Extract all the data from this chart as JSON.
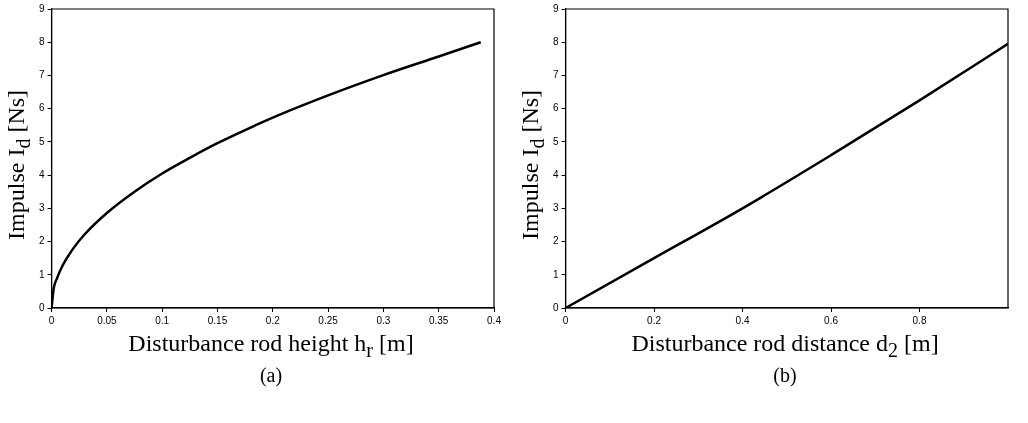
{
  "chart_data": [
    {
      "type": "line",
      "xlabel": "Disturbance rod height h$_{r}$ [m]",
      "ylabel": "Impulse I$_{d}$ [Ns]",
      "annotations": [
        "(a)"
      ],
      "x": [
        0,
        0.002,
        0.005,
        0.01,
        0.02,
        0.03,
        0.05,
        0.075,
        0.1,
        0.125,
        0.15,
        0.2,
        0.25,
        0.3,
        0.35,
        0.388
      ],
      "series": [
        {
          "color": "#000000",
          "values": [
            0,
            0.6,
            0.9,
            1.28,
            1.81,
            2.22,
            2.86,
            3.5,
            4.05,
            4.52,
            4.96,
            5.73,
            6.4,
            7.01,
            7.57,
            8.0
          ]
        }
      ],
      "xlim": [
        0,
        0.4
      ],
      "xticks": [
        0,
        0.05,
        0.1,
        0.15,
        0.2,
        0.25,
        0.3,
        0.35,
        0.4
      ],
      "ylim": [
        0,
        9
      ],
      "yticks": [
        0,
        1,
        2,
        3,
        4,
        5,
        6,
        7,
        8,
        9
      ],
      "marker": "none",
      "line_style": "solid"
    },
    {
      "type": "line",
      "xlabel": "Disturbance rod distance d$_{2}$ [m]",
      "ylabel": "Impulse I$_{d}$ [Ns]",
      "annotations": [
        "(b)"
      ],
      "x": [
        0,
        0.2,
        0.4,
        0.6,
        0.8,
        1.0
      ],
      "series": [
        {
          "color": "#000000",
          "values": [
            0,
            1.5,
            3.0,
            4.6,
            6.25,
            7.95
          ]
        }
      ],
      "xlim": [
        0,
        1
      ],
      "xticks": [
        0,
        0.2,
        0.4,
        0.6,
        0.8
      ],
      "ylim": [
        0,
        9
      ],
      "yticks": [
        0,
        1,
        2,
        3,
        4,
        5,
        6,
        7,
        8,
        9
      ],
      "marker": "none",
      "line_style": "solid"
    }
  ]
}
